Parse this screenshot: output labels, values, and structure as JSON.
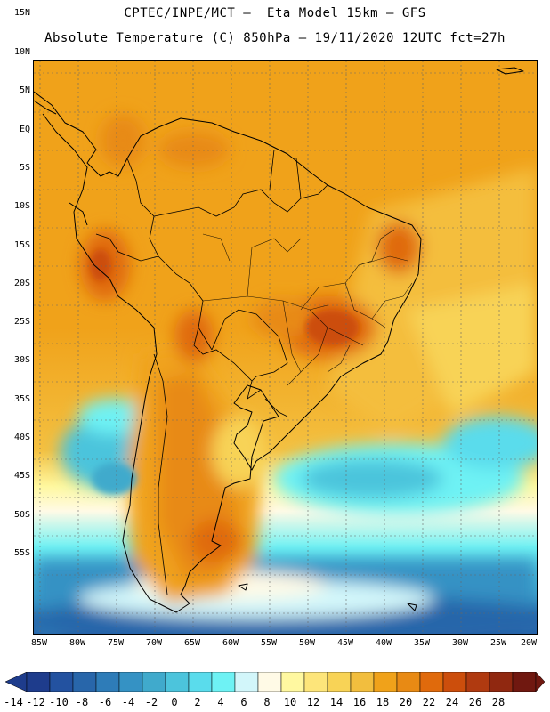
{
  "header": {
    "line1": "CPTEC/INPE/MCT –  Eta Model 15km – GFS",
    "line2": "Absolute Temperature (C) 850hPa – 19/11/2020 12UTC fct=27h"
  },
  "map": {
    "lat_labels": [
      "15N",
      "10N",
      "5N",
      "EQ",
      "5S",
      "10S",
      "15S",
      "20S",
      "25S",
      "30S",
      "35S",
      "40S",
      "45S",
      "50S",
      "55S"
    ],
    "lon_labels": [
      "85W",
      "80W",
      "75W",
      "70W",
      "65W",
      "60W",
      "55W",
      "50W",
      "45W",
      "40W",
      "35W",
      "30W",
      "25W",
      "20W"
    ]
  },
  "colorbar": {
    "labels": [
      "-14",
      "-12",
      "-10",
      "-8",
      "-6",
      "-4",
      "-2",
      "0",
      "2",
      "4",
      "6",
      "8",
      "10",
      "12",
      "14",
      "16",
      "18",
      "20",
      "22",
      "24",
      "26",
      "28"
    ],
    "colors": [
      "#1E3C8C",
      "#2352A0",
      "#2866AA",
      "#2E7CB8",
      "#3592C4",
      "#40AACC",
      "#4CC4DC",
      "#5ADCEC",
      "#6EF2F4",
      "#D2F6FA",
      "#FFFAE6",
      "#FFF8A0",
      "#FDE57A",
      "#F8D356",
      "#F2BE3E",
      "#F0A21A",
      "#E88A14",
      "#E06A0C",
      "#CC4E0C",
      "#B03A10",
      "#902810",
      "#701810"
    ]
  }
}
